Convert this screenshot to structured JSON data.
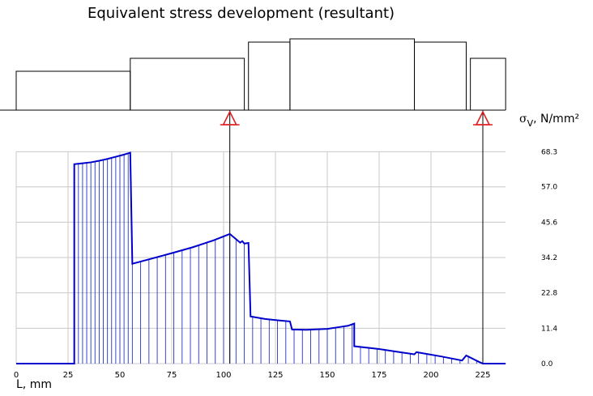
{
  "chart_data": {
    "type": "line",
    "title": "Equivalent stress development (resultant)",
    "ylabel": {
      "symbol": "σ",
      "subscript": "V",
      "unit": ", N/mm²"
    },
    "xlabel": "L, mm",
    "x_ticks": [
      0,
      25,
      50,
      75,
      100,
      125,
      150,
      175,
      200,
      225
    ],
    "y_ticks": [
      0.0,
      11.4,
      22.8,
      34.2,
      45.6,
      57.0,
      68.3
    ],
    "y_tick_labels": [
      "0.0",
      "11.4",
      "22.8",
      "34.2",
      "45.6",
      "57.0",
      "68.3"
    ],
    "xlim": [
      0,
      236
    ],
    "ylim": [
      0,
      68.3
    ],
    "grid": true,
    "bearings": [
      103,
      225
    ],
    "shaft_profile": [
      {
        "x0": 0,
        "x1": 55,
        "h": 12
      },
      {
        "x0": 55,
        "x1": 110,
        "h": 16
      },
      {
        "x0": 112,
        "x1": 132,
        "h": 21
      },
      {
        "x0": 132,
        "x1": 192,
        "h": 22
      },
      {
        "x0": 192,
        "x1": 217,
        "h": 21
      },
      {
        "x0": 219,
        "x1": 236,
        "h": 16
      }
    ],
    "series": [
      {
        "color": "#0000cc",
        "points": [
          [
            0,
            0
          ],
          [
            28,
            0
          ],
          [
            28,
            64.3
          ],
          [
            32,
            64.6
          ],
          [
            36,
            64.9
          ],
          [
            40,
            65.4
          ],
          [
            44,
            66.0
          ],
          [
            48,
            66.7
          ],
          [
            52,
            67.4
          ],
          [
            55,
            68.0
          ],
          [
            56,
            32.2
          ],
          [
            65,
            33.8
          ],
          [
            75,
            35.6
          ],
          [
            85,
            37.5
          ],
          [
            95,
            39.7
          ],
          [
            103,
            41.8
          ],
          [
            108,
            39.0
          ],
          [
            109,
            39.5
          ],
          [
            110,
            38.7
          ],
          [
            112,
            38.9
          ],
          [
            113,
            15.2
          ],
          [
            120,
            14.4
          ],
          [
            127,
            13.9
          ],
          [
            132,
            13.6
          ],
          [
            133,
            11.0
          ],
          [
            140,
            10.9
          ],
          [
            150,
            11.2
          ],
          [
            155,
            11.7
          ],
          [
            160,
            12.2
          ],
          [
            163,
            12.9
          ],
          [
            163,
            5.6
          ],
          [
            175,
            4.7
          ],
          [
            185,
            3.7
          ],
          [
            192,
            3.0
          ],
          [
            193,
            3.7
          ],
          [
            205,
            2.3
          ],
          [
            215,
            1.0
          ],
          [
            217,
            2.6
          ],
          [
            223,
            0.6
          ],
          [
            225,
            0
          ],
          [
            236,
            0
          ]
        ]
      }
    ],
    "hatch_x": [
      28,
      30,
      32,
      34,
      36,
      38,
      40,
      42,
      44,
      46,
      48,
      50,
      52,
      54,
      56,
      60,
      64,
      68,
      72,
      76,
      80,
      84,
      88,
      92,
      96,
      100,
      103,
      106,
      110,
      114,
      118,
      122,
      126,
      130,
      134,
      138,
      142,
      146,
      150,
      154,
      158,
      162,
      166,
      170,
      174,
      178,
      182,
      186,
      190,
      194,
      198,
      202,
      206,
      210,
      214,
      218,
      222
    ]
  }
}
